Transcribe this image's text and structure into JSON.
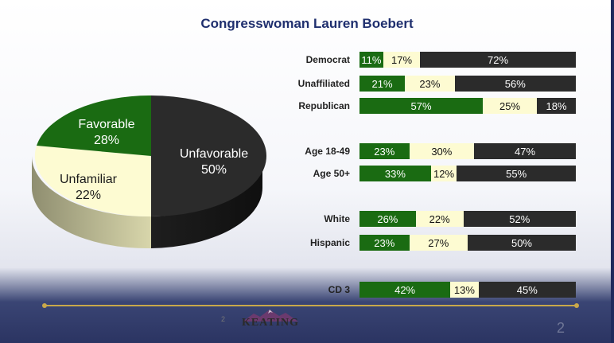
{
  "title": "Congresswoman Lauren Boebert",
  "pie": {
    "slices": [
      {
        "label": "Unfavorable",
        "value": "50%",
        "color": "#2b2b2b"
      },
      {
        "label": "Unfamiliar",
        "value": "22%",
        "color": "#fdfbd2"
      },
      {
        "label": "Favorable",
        "value": "28%",
        "color": "#1a6b12"
      }
    ]
  },
  "chart_data": {
    "type": "bar",
    "orientation": "horizontal-stacked",
    "categories": [
      "Democrat",
      "Unaffiliated",
      "Republican",
      "Age 18-49",
      "Age 50+",
      "White",
      "Hispanic",
      "CD 3"
    ],
    "series": [
      {
        "values": [
          11,
          21,
          57,
          23,
          33,
          26,
          23,
          42
        ],
        "color": "#1a6b12"
      },
      {
        "values": [
          17,
          23,
          25,
          30,
          12,
          22,
          27,
          13
        ],
        "color": "#fdfbd2"
      },
      {
        "values": [
          72,
          56,
          18,
          47,
          55,
          52,
          50,
          45
        ],
        "color": "#2b2b2b"
      }
    ],
    "pie": {
      "type": "pie",
      "categories": [
        "Favorable",
        "Unfamiliar",
        "Unfavorable"
      ],
      "values": [
        28,
        22,
        50
      ]
    }
  },
  "footer": {
    "logo_text": "KEATING",
    "small_number": "2",
    "page_number": "2"
  }
}
